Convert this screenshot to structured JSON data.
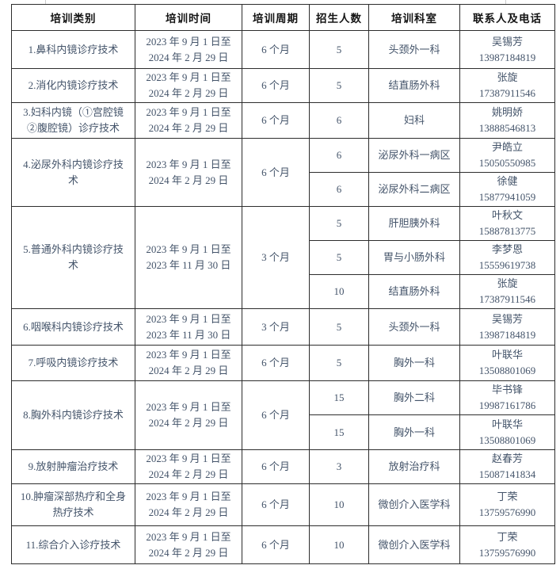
{
  "colors": {
    "background": "#ffffff",
    "body_text": "#44546A",
    "header_text": "#141414",
    "border": "#2d2d2d"
  },
  "table": {
    "headers": [
      "培训类别",
      "培训时间",
      "培训周期",
      "招生人数",
      "培训科室",
      "联系人及电话"
    ],
    "groups": [
      {
        "category": "1.鼻科内镜诊疗技术",
        "time": "2023 年 9 月 1 日至\n2024 年 2 月 29 日",
        "period": "6 个月",
        "rows": [
          {
            "count": "5",
            "dept": "头颈外一科",
            "contact": "吴锡芳",
            "phone": "13987184819"
          }
        ]
      },
      {
        "category": "2.消化内镜诊疗技术",
        "time": "2023 年 9 月 1 日至\n2024 年 2 月 29 日",
        "period": "6 个月",
        "rows": [
          {
            "count": "5",
            "dept": "结直肠外科",
            "contact": "张旋",
            "phone": "17387911546"
          }
        ]
      },
      {
        "category": "3.妇科内镜（①宫腔镜②腹腔镜）诊疗技术",
        "time": "2023 年 9 月 1 日至\n2024 年 2 月 29 日",
        "period": "6 个月",
        "rows": [
          {
            "count": "6",
            "dept": "妇科",
            "contact": "姚明娇",
            "phone": "13888546813"
          }
        ]
      },
      {
        "category": "4.泌尿外科内镜诊疗技术",
        "time": "2023 年 9 月 1 日至\n2024 年 2 月 29 日",
        "period": "6 个月",
        "rows": [
          {
            "count": "6",
            "dept": "泌尿外科一病区",
            "contact": "尹皓立",
            "phone": "15050550985"
          },
          {
            "count": "6",
            "dept": "泌尿外科二病区",
            "contact": "徐健",
            "phone": "15877941059"
          }
        ]
      },
      {
        "category": "5.普通外科内镜诊疗技术",
        "time": "2023 年 9 月 1 日至\n2023 年 11 月 30 日",
        "period": "3 个月",
        "rows": [
          {
            "count": "5",
            "dept": "肝胆胰外科",
            "contact": "叶秋文",
            "phone": "15887813775"
          },
          {
            "count": "5",
            "dept": "胃与小肠外科",
            "contact": "李梦恩",
            "phone": "15559619738"
          },
          {
            "count": "10",
            "dept": "结直肠外科",
            "contact": "张旋",
            "phone": "17387911546"
          }
        ]
      },
      {
        "category": "6.咽喉科内镜诊疗技术",
        "time": "2023 年 9 月 1 日至\n2023 年 11 月 30 日",
        "period": "3 个月",
        "rows": [
          {
            "count": "5",
            "dept": "头颈外一科",
            "contact": "吴锡芳",
            "phone": "13987184819"
          }
        ]
      },
      {
        "category": "7.呼吸内镜诊疗技术",
        "time": "2023 年 9 月 1 日至\n2024 年 2 月 29 日",
        "period": "6 个月",
        "rows": [
          {
            "count": "5",
            "dept": "胸外一科",
            "contact": "叶联华",
            "phone": "13508801069"
          }
        ]
      },
      {
        "category": "8.胸外科内镜诊疗技术",
        "time": "2023 年 9 月 1 日至\n2024 年 2 月 29 日",
        "period": "6 个月",
        "rows": [
          {
            "count": "15",
            "dept": "胸外二科",
            "contact": "毕书锋",
            "phone": "19987161786"
          },
          {
            "count": "15",
            "dept": "胸外一科",
            "contact": "叶联华",
            "phone": "13508801069"
          }
        ]
      },
      {
        "category": "9.放射肿瘤治疗技术",
        "time": "2023 年 9 月 1 日至\n2024 年 2 月 29 日",
        "period": "6 个月",
        "rows": [
          {
            "count": "3",
            "dept": "放射治疗科",
            "contact": "赵春芳",
            "phone": "15087141834"
          }
        ]
      },
      {
        "category": "10.肿瘤深部热疗和全身热疗技术",
        "time": "2023 年 9 月 1 日至\n2024 年 2 月 29 日",
        "period": "6 个月",
        "rows": [
          {
            "count": "10",
            "dept": "微创介入医学科",
            "contact": "丁荣",
            "phone": "13759576990"
          }
        ]
      },
      {
        "category": "11.综合介入诊疗技术",
        "time": "2023 年 9 月 1 日至\n2024 年 2 月 29 日",
        "period": "6 个月",
        "rows": [
          {
            "count": "10",
            "dept": "微创介入医学科",
            "contact": "丁荣",
            "phone": "13759576990"
          }
        ]
      }
    ]
  }
}
